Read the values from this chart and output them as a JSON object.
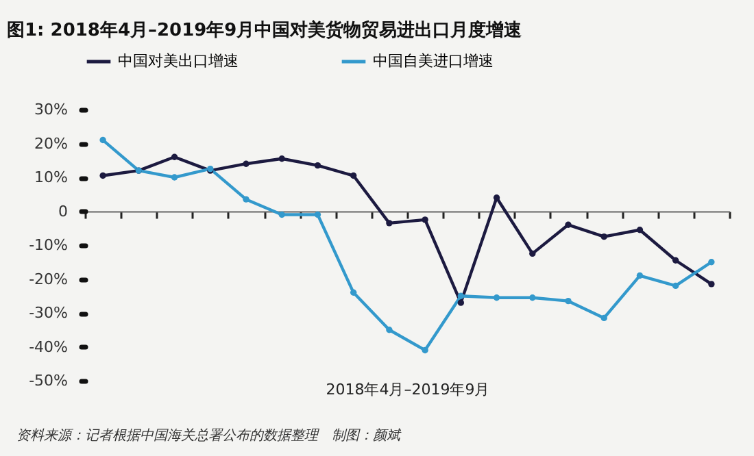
{
  "chart_data": {
    "type": "line",
    "title": "图1: 2018年4月–2019年9月中国对美货物贸易进出口月度增速",
    "xlabel": "2018年4月–2019年9月",
    "annotations": [
      "资料来源：记者根据中国海关总署公布的数据整理　制图：颜斌"
    ],
    "categories": [
      null,
      null,
      null,
      null,
      null,
      null,
      null,
      null,
      null,
      null,
      null,
      null,
      null,
      null,
      null,
      null,
      null,
      null
    ],
    "series": [
      {
        "name": "中国对美出口增速",
        "color": "#1c1a40",
        "values": [
          10.5,
          12,
          16,
          12,
          14,
          15.5,
          13.5,
          10.5,
          -3.5,
          -2.5,
          -27,
          4,
          -12.5,
          -4,
          -7.5,
          -5.5,
          -14.5,
          -21.5
        ]
      },
      {
        "name": "中国自美进口增速",
        "color": "#3399cc",
        "values": [
          21,
          12,
          10,
          12.5,
          3.5,
          -1,
          -1,
          -24,
          -35,
          -41,
          -25,
          -25.5,
          -25.5,
          -26.5,
          -31.5,
          -19,
          -22,
          -15
        ]
      }
    ],
    "ylim": [
      -50,
      30
    ],
    "yticks": [
      {
        "value": 30,
        "label": "30%"
      },
      {
        "value": 20,
        "label": "20%"
      },
      {
        "value": 10,
        "label": "10%"
      },
      {
        "value": 0,
        "label": "0"
      },
      {
        "value": -10,
        "label": "-10%"
      },
      {
        "value": -20,
        "label": "-20%"
      },
      {
        "value": -30,
        "label": "-30%"
      },
      {
        "value": -40,
        "label": "-40%"
      },
      {
        "value": -50,
        "label": "-50%"
      }
    ],
    "legend": "top",
    "marker": "circle",
    "line_style": "solid"
  }
}
